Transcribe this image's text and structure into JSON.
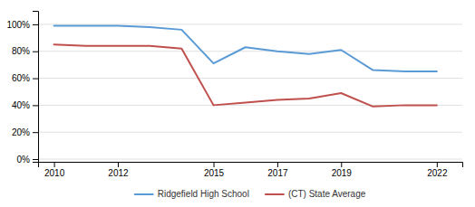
{
  "chart_data": {
    "type": "line",
    "x": [
      2010,
      2011,
      2012,
      2013,
      2014,
      2015,
      2016,
      2017,
      2018,
      2019,
      2020,
      2021,
      2022
    ],
    "series": [
      {
        "name": "Ridgefield High School",
        "color": "#5b9bd5",
        "values": [
          0.99,
          0.99,
          0.99,
          0.98,
          0.96,
          0.71,
          0.83,
          0.8,
          0.78,
          0.81,
          0.66,
          0.65,
          0.65
        ]
      },
      {
        "name": "(CT) State Average",
        "color": "#c0504d",
        "values": [
          0.85,
          0.84,
          0.84,
          0.84,
          0.82,
          0.4,
          0.42,
          0.44,
          0.45,
          0.49,
          0.39,
          0.4,
          0.4
        ]
      }
    ],
    "xlim": [
      2009.5,
      2022.8
    ],
    "xticks": [
      2010,
      2012,
      2015,
      2017,
      2019,
      2022
    ],
    "ylim": [
      -0.02,
      1.1
    ],
    "yticks": [
      {
        "value": 0.0,
        "label": "0%"
      },
      {
        "value": 0.2,
        "label": "20%"
      },
      {
        "value": 0.4,
        "label": "40%"
      },
      {
        "value": 0.6,
        "label": "60%"
      },
      {
        "value": 0.8,
        "label": "80%"
      },
      {
        "value": 1.0,
        "label": "100%"
      }
    ],
    "grid": true,
    "legend": "bottom"
  }
}
